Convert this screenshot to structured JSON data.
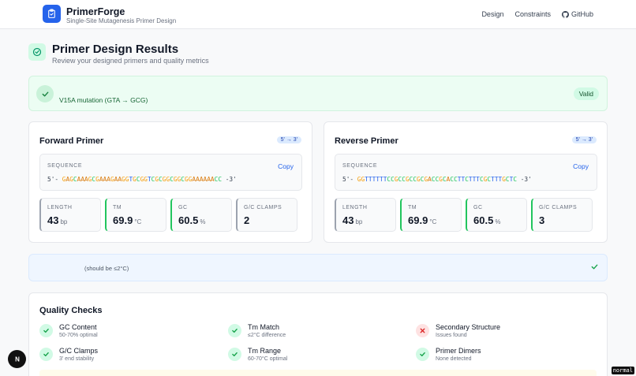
{
  "header": {
    "brand_name": "PrimerForge",
    "brand_subtitle": "Single-Site Mutagenesis Primer Design",
    "nav": {
      "design": "Design",
      "constraints": "Constraints",
      "github": "GitHub"
    }
  },
  "page": {
    "title": "Primer Design Results",
    "subtitle": "Review your designed primers and quality metrics"
  },
  "mutation": {
    "text": "V15A mutation (GTA → GCG)",
    "status": "Valid"
  },
  "forward": {
    "title": "Forward Primer",
    "direction": "5' → 3'",
    "sequence_label": "SEQUENCE",
    "copy_label": "Copy",
    "prefix": "5'-",
    "sequence": "GAGCAAAGCGAAAGAAGGTGCGGTCGCGGCGGCGGAAAAAACC",
    "suffix": "-3'",
    "metrics": [
      {
        "label": "LENGTH",
        "value": "43",
        "unit": "bp"
      },
      {
        "label": "TM",
        "value": "69.9",
        "unit": "°C"
      },
      {
        "label": "GC",
        "value": "60.5",
        "unit": "%"
      },
      {
        "label": "G/C CLAMPS",
        "value": "2",
        "unit": ""
      }
    ]
  },
  "reverse": {
    "title": "Reverse Primer",
    "direction": "5' → 3'",
    "sequence_label": "SEQUENCE",
    "copy_label": "Copy",
    "prefix": "5'-",
    "sequence": "GGTTTTTTCCGCCGCCGCGACCGCACCTTCTTTCGCTTTGCTC",
    "suffix": "-3'",
    "metrics": [
      {
        "label": "LENGTH",
        "value": "43",
        "unit": "bp"
      },
      {
        "label": "TM",
        "value": "69.9",
        "unit": "°C"
      },
      {
        "label": "GC",
        "value": "60.5",
        "unit": "%"
      },
      {
        "label": "G/C CLAMPS",
        "value": "3",
        "unit": ""
      }
    ]
  },
  "tm_difference": {
    "note": "(should be ≤2°C)"
  },
  "quality": {
    "title": "Quality Checks",
    "items": [
      {
        "label": "GC Content",
        "desc": "50-70% optimal",
        "status": "pass"
      },
      {
        "label": "Tm Match",
        "desc": "≤2°C difference",
        "status": "pass"
      },
      {
        "label": "Secondary Structure",
        "desc": "Issues found",
        "status": "fail"
      },
      {
        "label": "G/C Clamps",
        "desc": "3' end stability",
        "status": "pass"
      },
      {
        "label": "Tm Range",
        "desc": "60-70°C optimal",
        "status": "pass"
      },
      {
        "label": "Primer Dimers",
        "desc": "None detected",
        "status": "pass"
      }
    ]
  },
  "overlay": {
    "mode": "normal"
  },
  "colors": {
    "accent": "#2563eb",
    "success": "#22c55e",
    "danger": "#ef4444"
  }
}
